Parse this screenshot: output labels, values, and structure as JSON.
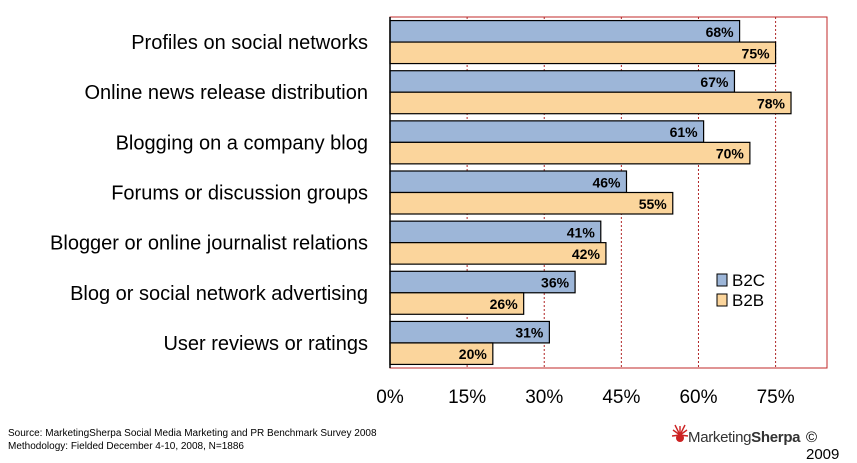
{
  "chart_data": {
    "type": "bar",
    "orientation": "horizontal",
    "title": "",
    "xlabel": "",
    "ylabel": "",
    "categories": [
      "Profiles on social networks",
      "Online news release distribution",
      "Blogging on a company blog",
      "Forums or discussion groups",
      "Blogger or online journalist relations",
      "Blog or social network advertising",
      "User reviews or ratings"
    ],
    "series": [
      {
        "name": "B2C",
        "color": "#9db6d8",
        "values": [
          68,
          67,
          61,
          46,
          41,
          36,
          31
        ]
      },
      {
        "name": "B2B",
        "color": "#fbd59c",
        "values": [
          75,
          78,
          70,
          55,
          42,
          26,
          20
        ]
      }
    ],
    "value_suffix": "%",
    "xlim": [
      0,
      85
    ],
    "xticks": [
      0,
      15,
      30,
      45,
      60,
      75
    ],
    "xtick_labels": [
      "0%",
      "15%",
      "30%",
      "45%",
      "60%",
      "75%"
    ],
    "grid": "vertical dashed",
    "legend_position": "right"
  },
  "footer": {
    "source": "Source: MarketingSherpa Social Media Marketing and PR Benchmark Survey 2008",
    "methodology": "Methodology: Fielded December 4-10, 2008, N=1886"
  },
  "brand": {
    "name_part1": "Marketing",
    "name_part2": "Sherpa",
    "copyright": "© 2009"
  }
}
